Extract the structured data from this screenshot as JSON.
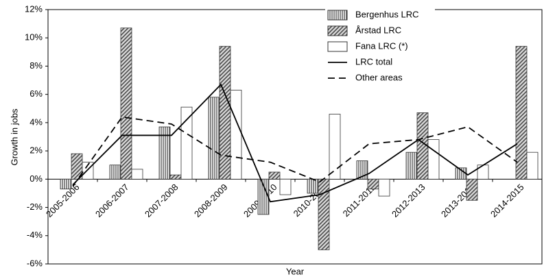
{
  "chart_data": {
    "type": "bar-line",
    "x_label": "Year",
    "y_label": "Growth in jobs",
    "categories": [
      "2005-2006",
      "2006-2007",
      "2007-2008",
      "2008-2009",
      "2009-2010",
      "2010-2011",
      "2011-2012",
      "2012-2013",
      "2013-2014",
      "2014-2015"
    ],
    "ylim": [
      -6,
      12
    ],
    "yticks": [
      {
        "value": -6,
        "label": "-6%"
      },
      {
        "value": -4,
        "label": "-4%"
      },
      {
        "value": -2,
        "label": "-2%"
      },
      {
        "value": 0,
        "label": "0%"
      },
      {
        "value": 2,
        "label": "2%"
      },
      {
        "value": 4,
        "label": "4%"
      },
      {
        "value": 6,
        "label": "6%"
      },
      {
        "value": 8,
        "label": "8%"
      },
      {
        "value": 10,
        "label": "10%"
      },
      {
        "value": 12,
        "label": "12%"
      }
    ],
    "legend": "top-right",
    "series": [
      {
        "name": "Bergenhus LRC",
        "kind": "bar",
        "pattern": "vertical",
        "color": "#555555",
        "values": [
          -0.7,
          1.0,
          3.7,
          5.8,
          -2.5,
          -1.0,
          1.3,
          1.9,
          0.8,
          0.0
        ]
      },
      {
        "name": "Årstad LRC",
        "kind": "bar",
        "pattern": "diagonal",
        "color": "#555555",
        "values": [
          1.8,
          10.7,
          0.3,
          9.4,
          0.5,
          -5.0,
          -0.7,
          4.7,
          -1.5,
          9.4
        ]
      },
      {
        "name": "Fana LRC (*)",
        "kind": "bar",
        "pattern": "none",
        "color": "#ffffff",
        "values": [
          1.2,
          0.7,
          5.1,
          6.3,
          -1.1,
          4.6,
          -1.2,
          2.8,
          1.0,
          1.9
        ]
      },
      {
        "name": "LRC total",
        "kind": "line",
        "dash": "solid",
        "color": "#000000",
        "values": [
          -0.4,
          3.1,
          3.1,
          6.7,
          -1.6,
          -1.1,
          0.4,
          2.8,
          0.3,
          2.5
        ]
      },
      {
        "name": "Other areas",
        "kind": "line",
        "dash": "dashed",
        "color": "#000000",
        "values": [
          -0.5,
          4.4,
          3.9,
          1.7,
          1.2,
          -0.2,
          2.5,
          2.8,
          3.7,
          1.2
        ]
      }
    ]
  }
}
